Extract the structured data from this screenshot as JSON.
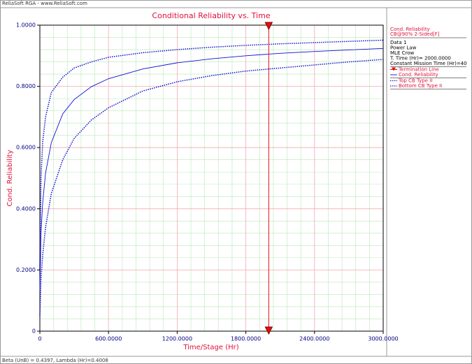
{
  "header": "ReliaSoft RGA - www.ReliaSoft.com",
  "footer": "Beta (UnB) = 0.4397, Lambda (Hr)=0.4008",
  "chart_data": {
    "type": "line",
    "title": "Conditional Reliability vs. Time",
    "xlabel": "Time/Stage (Hr)",
    "ylabel": "Cond. Reliability",
    "xlim": [
      0,
      3000
    ],
    "ylim": [
      0,
      1
    ],
    "xticks": [
      0,
      {
        "value": 600,
        "label": "600.0000"
      },
      {
        "value": 1200,
        "label": "1200.0000"
      },
      {
        "value": 1800,
        "label": "1800.0000"
      },
      {
        "value": 2400,
        "label": "2400.0000"
      },
      {
        "value": 3000,
        "label": "3000.0000"
      }
    ],
    "yticks": [
      0,
      {
        "value": 0.2,
        "label": "0.2000"
      },
      {
        "value": 0.4,
        "label": "0.4000"
      },
      {
        "value": 0.6,
        "label": "0.6000"
      },
      {
        "value": 0.8,
        "label": "0.8000"
      },
      {
        "value": 1,
        "label": "1.0000"
      }
    ],
    "grid": true,
    "minor_grid_divisions": 5,
    "x": [
      0,
      10,
      25,
      50,
      100,
      200,
      300,
      450,
      600,
      900,
      1200,
      1500,
      1800,
      2100,
      2400,
      2700,
      3000
    ],
    "series": [
      {
        "name": "Cond. Reliability",
        "color": "#1010d0",
        "style": "solid",
        "values": [
          0.131,
          0.321,
          0.422,
          0.517,
          0.616,
          0.71,
          0.757,
          0.799,
          0.825,
          0.857,
          0.877,
          0.89,
          0.9,
          0.908,
          0.914,
          0.919,
          0.924
        ]
      },
      {
        "name": "Top CB Type II",
        "color": "#1010d0",
        "style": "dotted",
        "values": [
          0.2,
          0.5,
          0.62,
          0.7,
          0.78,
          0.83,
          0.86,
          0.88,
          0.895,
          0.91,
          0.92,
          0.928,
          0.934,
          0.939,
          0.943,
          0.947,
          0.951
        ]
      },
      {
        "name": "Bottom CB Type II",
        "color": "#1010d0",
        "style": "dotted",
        "values": [
          0.05,
          0.17,
          0.25,
          0.34,
          0.45,
          0.56,
          0.63,
          0.69,
          0.73,
          0.785,
          0.815,
          0.835,
          0.85,
          0.86,
          0.87,
          0.88,
          0.888
        ]
      }
    ],
    "termination": {
      "name": "Termination Line",
      "x": 2000,
      "color": "#e01010"
    },
    "legend_title": "Cond. Reliability",
    "legend_subtitle": "CB@90% 2-Sided[F]",
    "info_lines": [
      "Data 1",
      "Power Law",
      "MLE Crow",
      "T. Time (Hr)= 2000.0000",
      "Constant Mission Time (Hr)=40"
    ]
  }
}
